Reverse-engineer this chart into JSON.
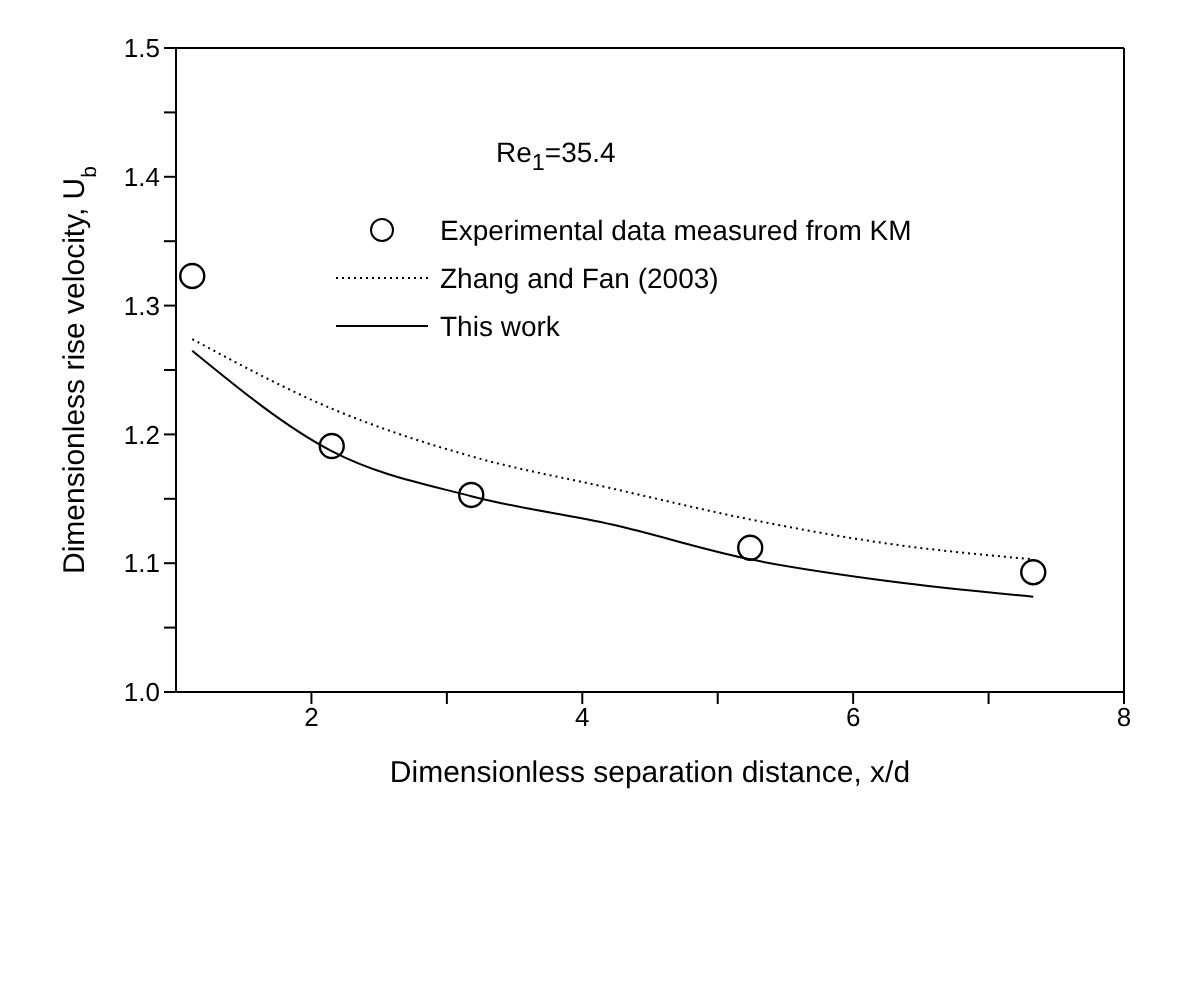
{
  "chart_data": {
    "type": "line",
    "xlabel": "Dimensionless separation distance, x/d",
    "ylabel": "Dimensionless rise velocity, U$_{b}$",
    "annotations": [
      "Re$_{1}$=35.4"
    ],
    "xlim": [
      1,
      8
    ],
    "xticks": [
      {
        "value": 2,
        "label": "2"
      },
      {
        "value": 3,
        "label": null
      },
      {
        "value": 4,
        "label": "4"
      },
      {
        "value": 5,
        "label": null
      },
      {
        "value": 6,
        "label": "6"
      },
      {
        "value": 7,
        "label": null
      },
      {
        "value": 8,
        "label": "8"
      }
    ],
    "ylim": [
      1,
      1.5
    ],
    "yticks": [
      {
        "value": 1,
        "label": "1.0"
      },
      {
        "value": 1.05,
        "label": null
      },
      {
        "value": 1.1,
        "label": "1.1"
      },
      {
        "value": 1.15,
        "label": null
      },
      {
        "value": 1.2,
        "label": "1.2"
      },
      {
        "value": 1.25,
        "label": null
      },
      {
        "value": 1.3,
        "label": "1.3"
      },
      {
        "value": 1.35,
        "label": null
      },
      {
        "value": 1.4,
        "label": "1.4"
      },
      {
        "value": 1.45,
        "label": null
      },
      {
        "value": 1.5,
        "label": "1.5"
      }
    ],
    "grid": false,
    "legend": "top",
    "series": [
      {
        "name": "Experimental data measured from KM",
        "type": "scatter",
        "marker": "circle",
        "color": "#000000",
        "x": [
          1.12,
          2.15,
          3.18,
          5.24,
          7.33
        ],
        "values": [
          1.323,
          1.191,
          1.153,
          1.112,
          1.093
        ]
      },
      {
        "name": "Zhang and Fan (2003)",
        "type": "line",
        "line_style": "dotted",
        "marker": "none",
        "color": "#000000",
        "x": [
          1.12,
          2.15,
          3.18,
          4.22,
          5.24,
          6.27,
          7.33
        ],
        "values": [
          1.274,
          1.22,
          1.183,
          1.158,
          1.134,
          1.115,
          1.103
        ]
      },
      {
        "name": "This work",
        "type": "line",
        "line_style": "solid",
        "marker": "none",
        "color": "#000000",
        "x": [
          1.12,
          2.15,
          3.18,
          4.22,
          5.24,
          6.27,
          7.33
        ],
        "values": [
          1.265,
          1.187,
          1.152,
          1.13,
          1.103,
          1.086,
          1.074
        ]
      }
    ]
  }
}
